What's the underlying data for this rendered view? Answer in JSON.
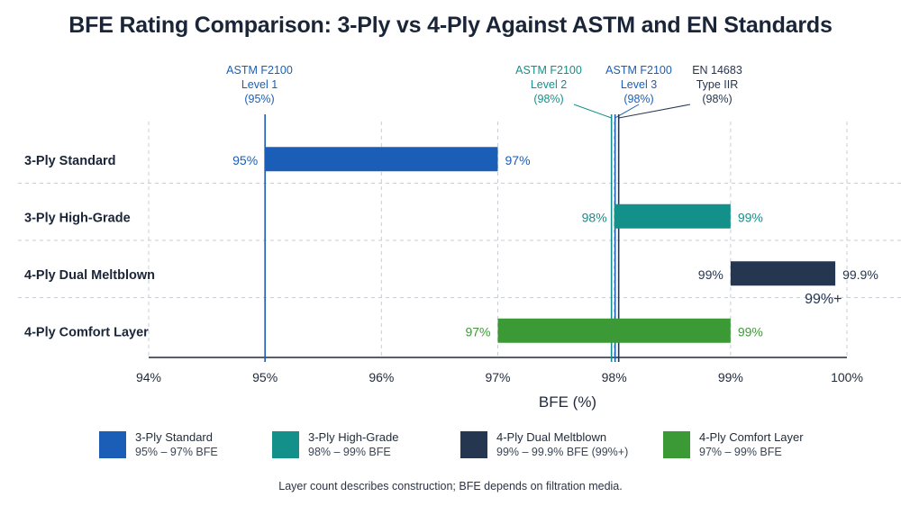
{
  "title": "BFE Rating Comparison: 3-Ply vs 4-Ply Against ASTM and EN Standards",
  "footnote": "Layer count describes construction; BFE depends on filtration media.",
  "colors": {
    "3-Ply Standard": "#1a5eb8",
    "3-Ply High-Grade": "#13908a",
    "4-Ply Dual Meltblown": "#253650",
    "4-Ply Comfort Layer": "#3c9a36",
    "astm_level1": "#1a5eb8",
    "astm_level2": "#13908a",
    "astm_level3": "#1a5eb8",
    "en14683": "#253650"
  },
  "chart_data": {
    "type": "bar",
    "orientation": "horizontal",
    "style": "floating range bars",
    "xlabel": "BFE (%)",
    "xlim": [
      94,
      100
    ],
    "xticks": [
      "94%",
      "95%",
      "96%",
      "97%",
      "98%",
      "99%",
      "100%"
    ],
    "grid": "dashed",
    "categories": [
      "3-Ply Standard",
      "3-Ply High-Grade",
      "4-Ply Dual Meltblown",
      "4-Ply Comfort Layer"
    ],
    "series": [
      {
        "category": "3-Ply Standard",
        "low": 95,
        "high": 97,
        "low_label": "95%",
        "high_label": "97%",
        "note": ""
      },
      {
        "category": "3-Ply High-Grade",
        "low": 98,
        "high": 99,
        "low_label": "98%",
        "high_label": "99%",
        "note": ""
      },
      {
        "category": "4-Ply Dual Meltblown",
        "low": 99,
        "high": 99.9,
        "low_label": "99%",
        "high_label": "99.9%",
        "note": "99%+"
      },
      {
        "category": "4-Ply Comfort Layer",
        "low": 97,
        "high": 99,
        "low_label": "97%",
        "high_label": "99%",
        "note": ""
      }
    ],
    "reference_lines": [
      {
        "label_lines": [
          "ASTM F2100",
          "Level 1",
          "(95%)"
        ],
        "value": 95,
        "color_key": "astm_level1"
      },
      {
        "label_lines": [
          "ASTM F2100",
          "Level 2",
          "(98%)"
        ],
        "value": 98,
        "color_key": "astm_level2"
      },
      {
        "label_lines": [
          "ASTM F2100",
          "Level 3",
          "(98%)"
        ],
        "value": 98,
        "color_key": "astm_level3"
      },
      {
        "label_lines": [
          "EN 14683",
          "Type IIR",
          "(98%)"
        ],
        "value": 98,
        "color_key": "en14683"
      }
    ],
    "legend": [
      {
        "name": "3-Ply Standard",
        "range": "95% – 97% BFE"
      },
      {
        "name": "3-Ply High-Grade",
        "range": "98% – 99% BFE"
      },
      {
        "name": "4-Ply Dual Meltblown",
        "range": "99% – 99.9% BFE (99%+)"
      },
      {
        "name": "4-Ply Comfort Layer",
        "range": "97% – 99% BFE"
      }
    ],
    "legend_position": "bottom"
  }
}
